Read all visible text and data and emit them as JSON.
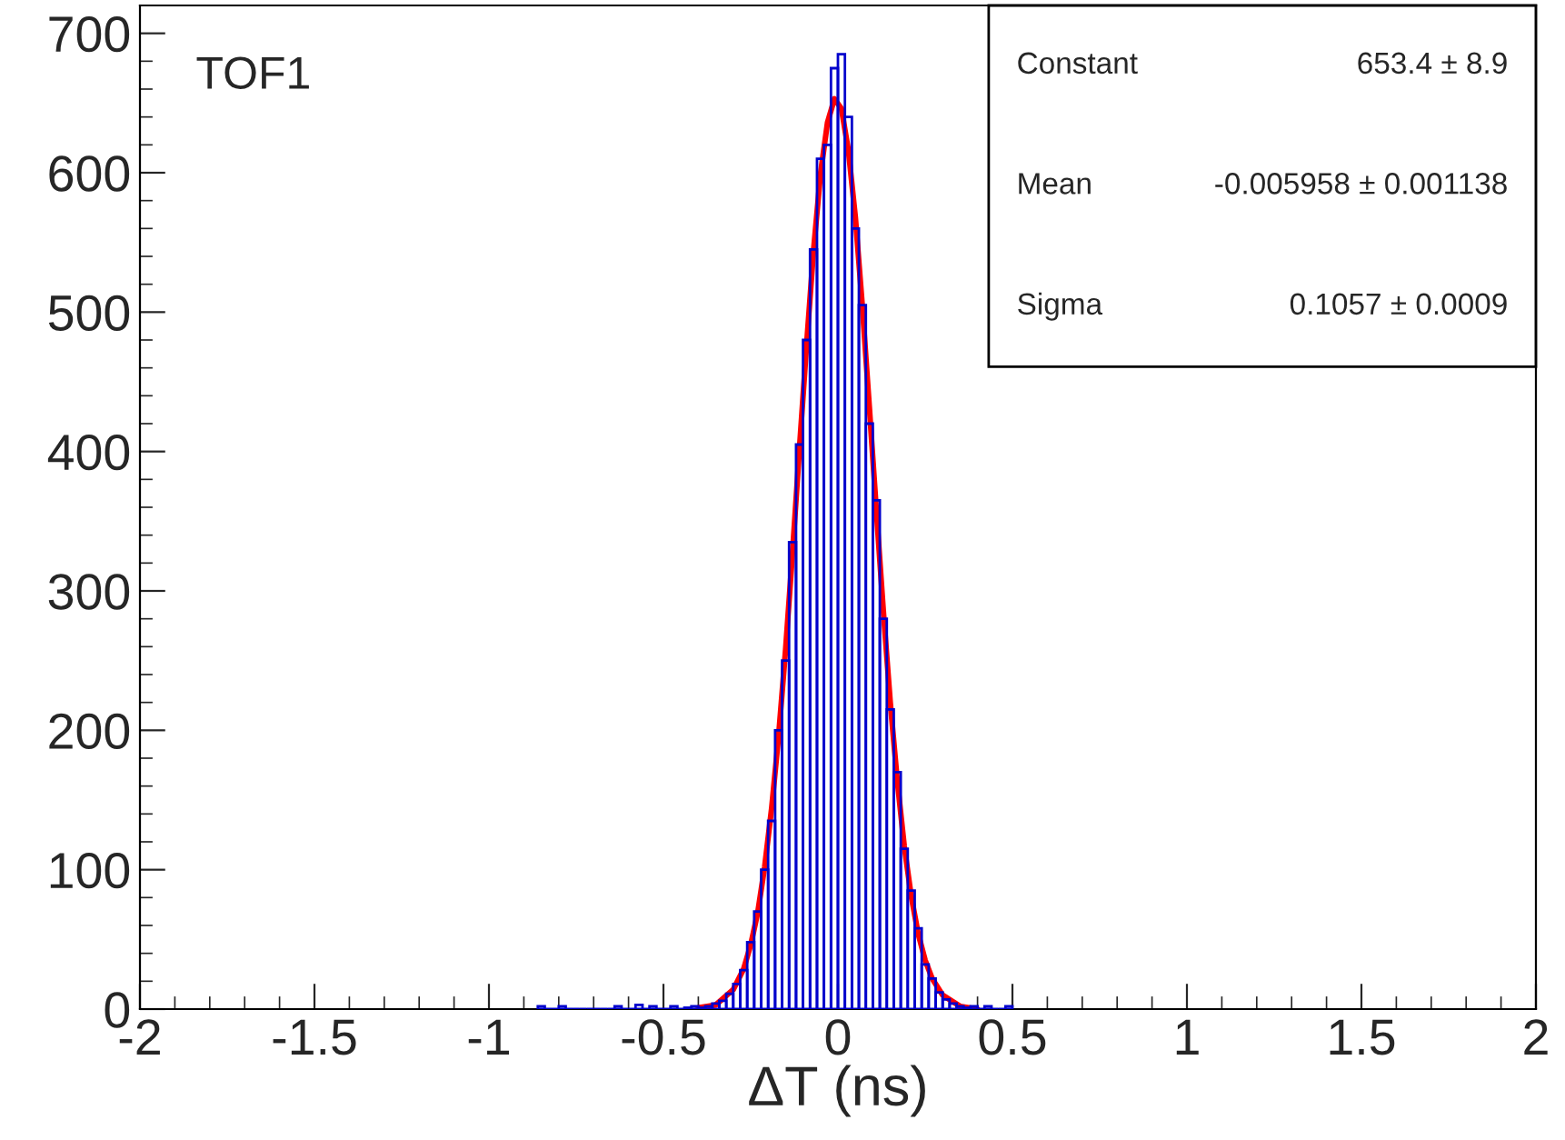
{
  "chart_data": {
    "type": "histogram",
    "xlabel": "ΔT (ns)",
    "bins": [
      -0.86,
      -0.84,
      -0.82,
      -0.8,
      -0.78,
      -0.76,
      -0.74,
      -0.72,
      -0.7,
      -0.68,
      -0.66,
      -0.64,
      -0.62,
      -0.6,
      -0.58,
      -0.56,
      -0.54,
      -0.52,
      -0.5,
      -0.48,
      -0.46,
      -0.44,
      -0.42,
      -0.4,
      -0.38,
      -0.36,
      -0.34,
      -0.32,
      -0.3,
      -0.28,
      -0.26,
      -0.24,
      -0.22,
      -0.2,
      -0.18,
      -0.16,
      -0.14,
      -0.12,
      -0.1,
      -0.08,
      -0.06,
      -0.04,
      -0.02,
      0,
      0.02,
      0.04,
      0.06,
      0.08,
      0.1,
      0.12,
      0.14,
      0.16,
      0.18,
      0.2,
      0.22,
      0.24,
      0.26,
      0.28,
      0.3,
      0.32,
      0.34,
      0.36,
      0.38,
      0.4,
      0.42,
      0.44,
      0.46,
      0.48,
      0.5
    ],
    "values": [
      2,
      0,
      0,
      2,
      0,
      0,
      0,
      0,
      0,
      0,
      0,
      2,
      0,
      0,
      3,
      0,
      2,
      0,
      0,
      2,
      0,
      1,
      2,
      1,
      2,
      4,
      6,
      11,
      18,
      28,
      48,
      70,
      100,
      135,
      200,
      250,
      335,
      405,
      480,
      545,
      610,
      620,
      675,
      685,
      640,
      560,
      505,
      420,
      365,
      280,
      215,
      170,
      115,
      85,
      58,
      32,
      22,
      12,
      7,
      4,
      2,
      1,
      2,
      0,
      2,
      0,
      0,
      2
    ],
    "color": "#0000cc",
    "series": [
      {
        "type": "line",
        "color": "#ff0000",
        "x": [
          -0.4,
          -0.35,
          -0.3,
          -0.27,
          -0.25,
          -0.23,
          -0.21,
          -0.19,
          -0.17,
          -0.15,
          -0.13,
          -0.11,
          -0.09,
          -0.07,
          -0.05,
          -0.03,
          -0.01,
          0.01,
          0.03,
          0.05,
          0.07,
          0.09,
          0.11,
          0.13,
          0.15,
          0.17,
          0.19,
          0.21,
          0.23,
          0.25,
          0.27,
          0.3,
          0.35,
          0.4
        ],
        "values": [
          1,
          3,
          14,
          29,
          46,
          69,
          102,
          144,
          196,
          258,
          328,
          403,
          476,
          544,
          599,
          636,
          653,
          646,
          616,
          568,
          504,
          432,
          358,
          286,
          220,
          164,
          117,
          81,
          54,
          35,
          22,
          10,
          2,
          0
        ]
      }
    ],
    "xlim": [
      -2,
      2
    ],
    "xticks": [
      -2,
      -1.5,
      -1,
      -0.5,
      0,
      0.5,
      1,
      1.5,
      2
    ],
    "ylim": [
      0,
      720
    ],
    "yticks": [
      0,
      100,
      200,
      300,
      400,
      500,
      600,
      700
    ],
    "grid": false,
    "legend": false,
    "annotations": [
      "TOF1",
      "Constant",
      "653.4 ± 8.9",
      "Mean",
      "-0.005958 ± 0.001138",
      "Sigma",
      "0.1057 ± 0.0009"
    ]
  }
}
